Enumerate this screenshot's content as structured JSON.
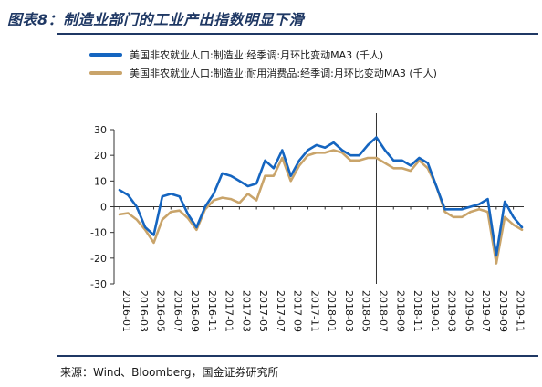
{
  "page": {
    "title": "图表8：制造业部门的工业产出指数明显下滑",
    "source": "来源：Wind、Bloomberg，国金证券研究所"
  },
  "chart_data": {
    "type": "line",
    "title": "",
    "xlabel": "",
    "ylabel": "",
    "ylim": [
      -30,
      30
    ],
    "yticks": [
      -30,
      -20,
      -10,
      0,
      10,
      20,
      30
    ],
    "grid": false,
    "legend": "top-left",
    "vline_at": "2018-07",
    "x": [
      "2016-01",
      "2016-02",
      "2016-03",
      "2016-04",
      "2016-05",
      "2016-06",
      "2016-07",
      "2016-08",
      "2016-09",
      "2016-10",
      "2016-11",
      "2016-12",
      "2017-01",
      "2017-02",
      "2017-03",
      "2017-04",
      "2017-05",
      "2017-06",
      "2017-07",
      "2017-08",
      "2017-09",
      "2017-10",
      "2017-11",
      "2017-12",
      "2018-01",
      "2018-02",
      "2018-03",
      "2018-04",
      "2018-05",
      "2018-06",
      "2018-07",
      "2018-08",
      "2018-09",
      "2018-10",
      "2018-11",
      "2018-12",
      "2019-01",
      "2019-02",
      "2019-03",
      "2019-04",
      "2019-05",
      "2019-06",
      "2019-07",
      "2019-08",
      "2019-09",
      "2019-10",
      "2019-11",
      "2019-12"
    ],
    "xtick_labels": [
      "2016-01",
      "2016-03",
      "2016-05",
      "2016-07",
      "2016-09",
      "2016-11",
      "2017-01",
      "2017-03",
      "2017-05",
      "2017-07",
      "2017-09",
      "2017-11",
      "2018-01",
      "2018-03",
      "2018-05",
      "2018-07",
      "2018-09",
      "2018-11",
      "2019-01",
      "2019-03",
      "2019-05",
      "2019-07",
      "2019-09",
      "2019-11"
    ],
    "series": [
      {
        "name": "美国非农就业人口:制造业:经季调:月环比变动MA3 (千人)",
        "color": "#1565c0",
        "values": [
          6.5,
          4.5,
          0,
          -8,
          -11,
          4,
          5,
          4,
          -3,
          -8,
          0,
          5,
          13,
          12,
          10,
          8,
          9,
          18,
          15,
          22,
          12,
          18,
          22,
          24,
          23,
          25,
          22,
          20,
          20,
          24,
          27,
          22,
          18,
          18,
          16,
          19,
          17,
          8,
          -1,
          -1,
          -1,
          0,
          1,
          3,
          -19,
          2,
          -4,
          -8
        ]
      },
      {
        "name": "美国非农就业人口:制造业:耐用消费品:经季调:月环比变动MA3 (千人)",
        "color": "#c9a46a",
        "values": [
          -3,
          -2.5,
          -5,
          -9,
          -14,
          -5,
          -2,
          -1.5,
          -4.5,
          -9,
          -1,
          2.5,
          3.5,
          3,
          1.5,
          5,
          2.5,
          12,
          12,
          19,
          10,
          16,
          20,
          21,
          21,
          22,
          21,
          18,
          18,
          19,
          19,
          17,
          15,
          15,
          14,
          18,
          15,
          8,
          -2,
          -4,
          -4,
          -2,
          -1,
          -2,
          -22,
          -4,
          -7,
          -9
        ]
      }
    ]
  }
}
